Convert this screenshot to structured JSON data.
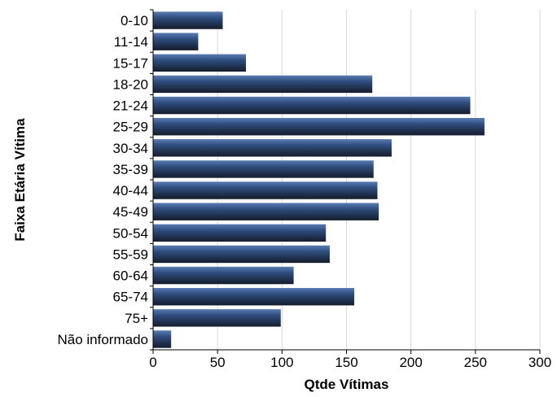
{
  "chart_data": {
    "type": "bar",
    "orientation": "horizontal",
    "title": "",
    "xlabel": "Qtde Vítimas",
    "ylabel": "Faixa Etária Vítima",
    "categories": [
      "0-10",
      "11-14",
      "15-17",
      "18-20",
      "21-24",
      "25-29",
      "30-34",
      "35-39",
      "40-44",
      "45-49",
      "50-54",
      "55-59",
      "60-64",
      "65-74",
      "75+",
      "Não informado"
    ],
    "values": [
      54,
      35,
      72,
      170,
      246,
      257,
      185,
      171,
      174,
      175,
      134,
      137,
      109,
      156,
      99,
      14
    ],
    "xlim": [
      0,
      300
    ],
    "xticks": [
      "0",
      "50",
      "100",
      "150",
      "200",
      "250",
      "300"
    ],
    "grid": true,
    "legend": "none",
    "bar_color": "#2f4d7e",
    "bar_highlight": "#5a7bb3",
    "bar_shadow": "#141c2c"
  }
}
